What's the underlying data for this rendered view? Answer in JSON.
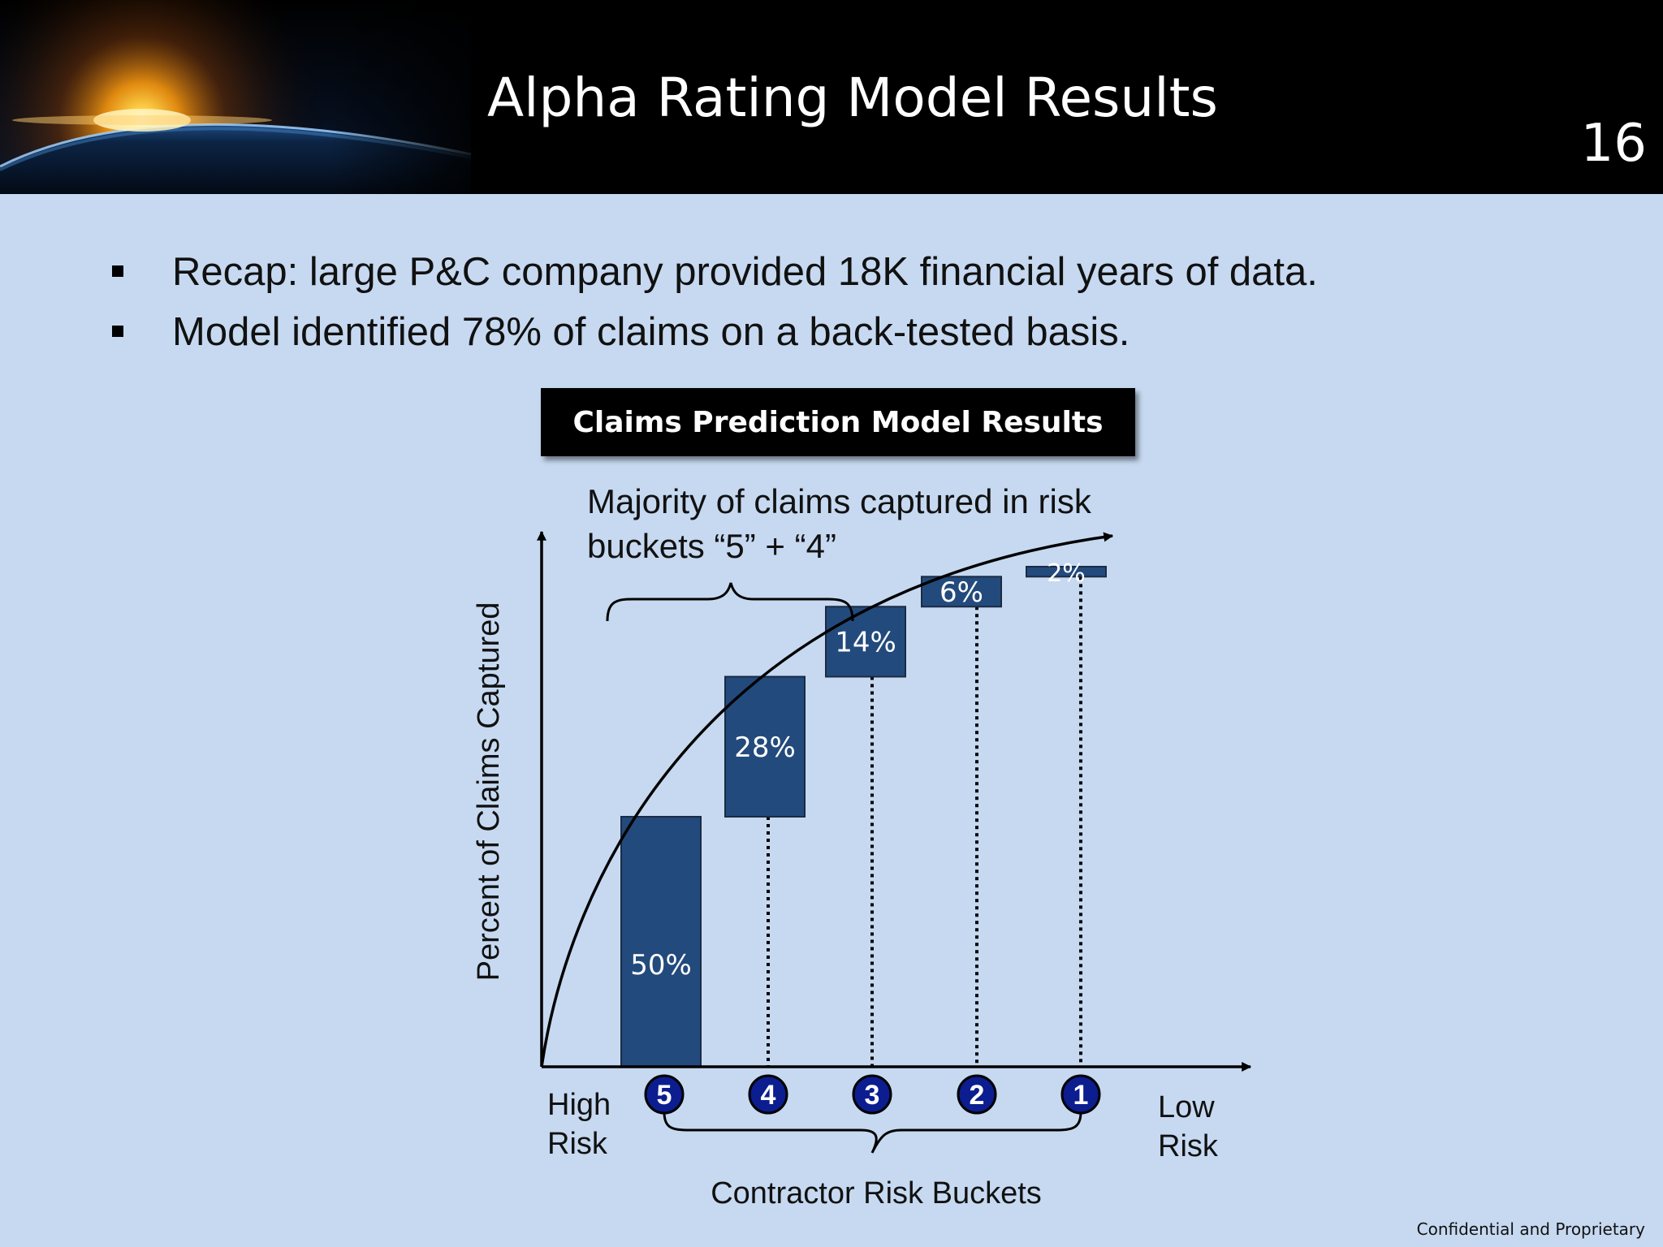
{
  "slide": {
    "title": "Alpha Rating Model Results",
    "page_number": "16",
    "footer": "Confidential and Proprietary"
  },
  "bullets": [
    "Recap: large P&C company provided 18K financial years of data.",
    "Model identified 78% of claims on a back-tested basis."
  ],
  "chart_data": {
    "type": "bar",
    "title": "Claims Prediction Model Results",
    "ylabel": "Percent of Claims Captured",
    "xlabel": "Contractor Risk Buckets",
    "categories": [
      "5",
      "4",
      "3",
      "2",
      "1"
    ],
    "values": [
      50,
      28,
      14,
      6,
      2
    ],
    "value_labels": [
      "50%",
      "28%",
      "14%",
      "6%",
      "2%"
    ],
    "x_end_labels": {
      "left": [
        "High",
        "Risk"
      ],
      "right": [
        "Low",
        "Risk"
      ]
    },
    "annotation": [
      "Majority of claims captured in risk",
      "buckets “5” + “4”"
    ],
    "grid": false,
    "colors": {
      "bar": "#234a7c",
      "bubble": "#0b1d8f",
      "text": "#111111"
    }
  }
}
